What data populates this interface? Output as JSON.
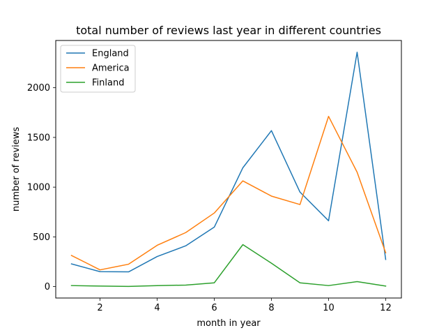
{
  "chart_data": {
    "type": "line",
    "title": "total number of reviews last year in different countries",
    "xlabel": "month in year",
    "ylabel": "number of reviews",
    "x": [
      1,
      2,
      3,
      4,
      5,
      6,
      7,
      8,
      9,
      10,
      11,
      12
    ],
    "xticks": [
      2,
      4,
      6,
      8,
      10,
      12
    ],
    "yticks": [
      0,
      500,
      1000,
      1500,
      2000
    ],
    "xlim": [
      0.45,
      12.55
    ],
    "ylim": [
      -115,
      2475
    ],
    "grid": false,
    "legend_position": "upper-left",
    "series": [
      {
        "name": "England",
        "color": "#1f77b4",
        "values": [
          228,
          150,
          148,
          302,
          410,
          598,
          1195,
          1568,
          950,
          662,
          2357,
          273
        ]
      },
      {
        "name": "America",
        "color": "#ff7f0e",
        "values": [
          313,
          168,
          225,
          415,
          543,
          740,
          1063,
          910,
          825,
          1712,
          1150,
          340
        ]
      },
      {
        "name": "Finland",
        "color": "#2ca02c",
        "values": [
          10,
          5,
          2,
          10,
          15,
          38,
          422,
          235,
          38,
          10,
          50,
          5
        ]
      }
    ]
  }
}
